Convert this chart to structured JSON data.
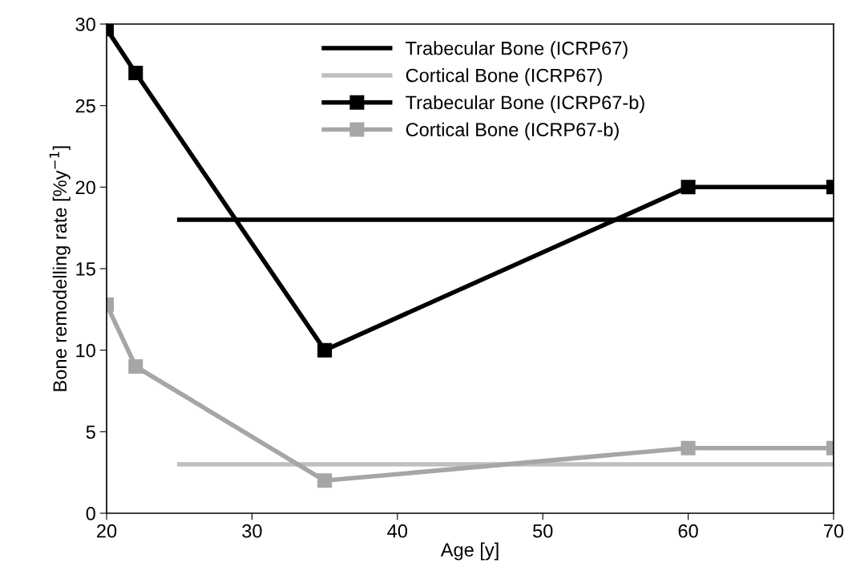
{
  "chart_data": {
    "type": "line",
    "xlabel": "Age [y]",
    "ylabel": "Bone remodelling rate [%y$^{−1}$]",
    "xlim": [
      20,
      70
    ],
    "ylim": [
      0,
      30
    ],
    "xticks": [
      20,
      30,
      40,
      50,
      60,
      70
    ],
    "yticks": [
      0,
      5,
      10,
      15,
      20,
      25,
      30
    ],
    "grid": false,
    "legend": "top",
    "series": [
      {
        "name": "Trabecular Bone (ICRP67)",
        "color": "#000000",
        "marker": "none",
        "x": [
          25,
          70
        ],
        "values": [
          18,
          18
        ]
      },
      {
        "name": "Cortical Bone (ICRP67)",
        "color": "#c0c0c0",
        "marker": "none",
        "x": [
          25,
          70
        ],
        "values": [
          3,
          3
        ]
      },
      {
        "name": "Trabecular Bone (ICRP67-b)",
        "color": "#000000",
        "marker": "square",
        "x": [
          20,
          22,
          35,
          60,
          70
        ],
        "values": [
          29.7,
          27,
          10,
          20,
          20
        ]
      },
      {
        "name": "Cortical Bone (ICRP67-b)",
        "color": "#a6a6a6",
        "marker": "square",
        "x": [
          20,
          22,
          35,
          60,
          70
        ],
        "values": [
          12.8,
          9,
          2,
          4,
          4
        ]
      }
    ]
  }
}
